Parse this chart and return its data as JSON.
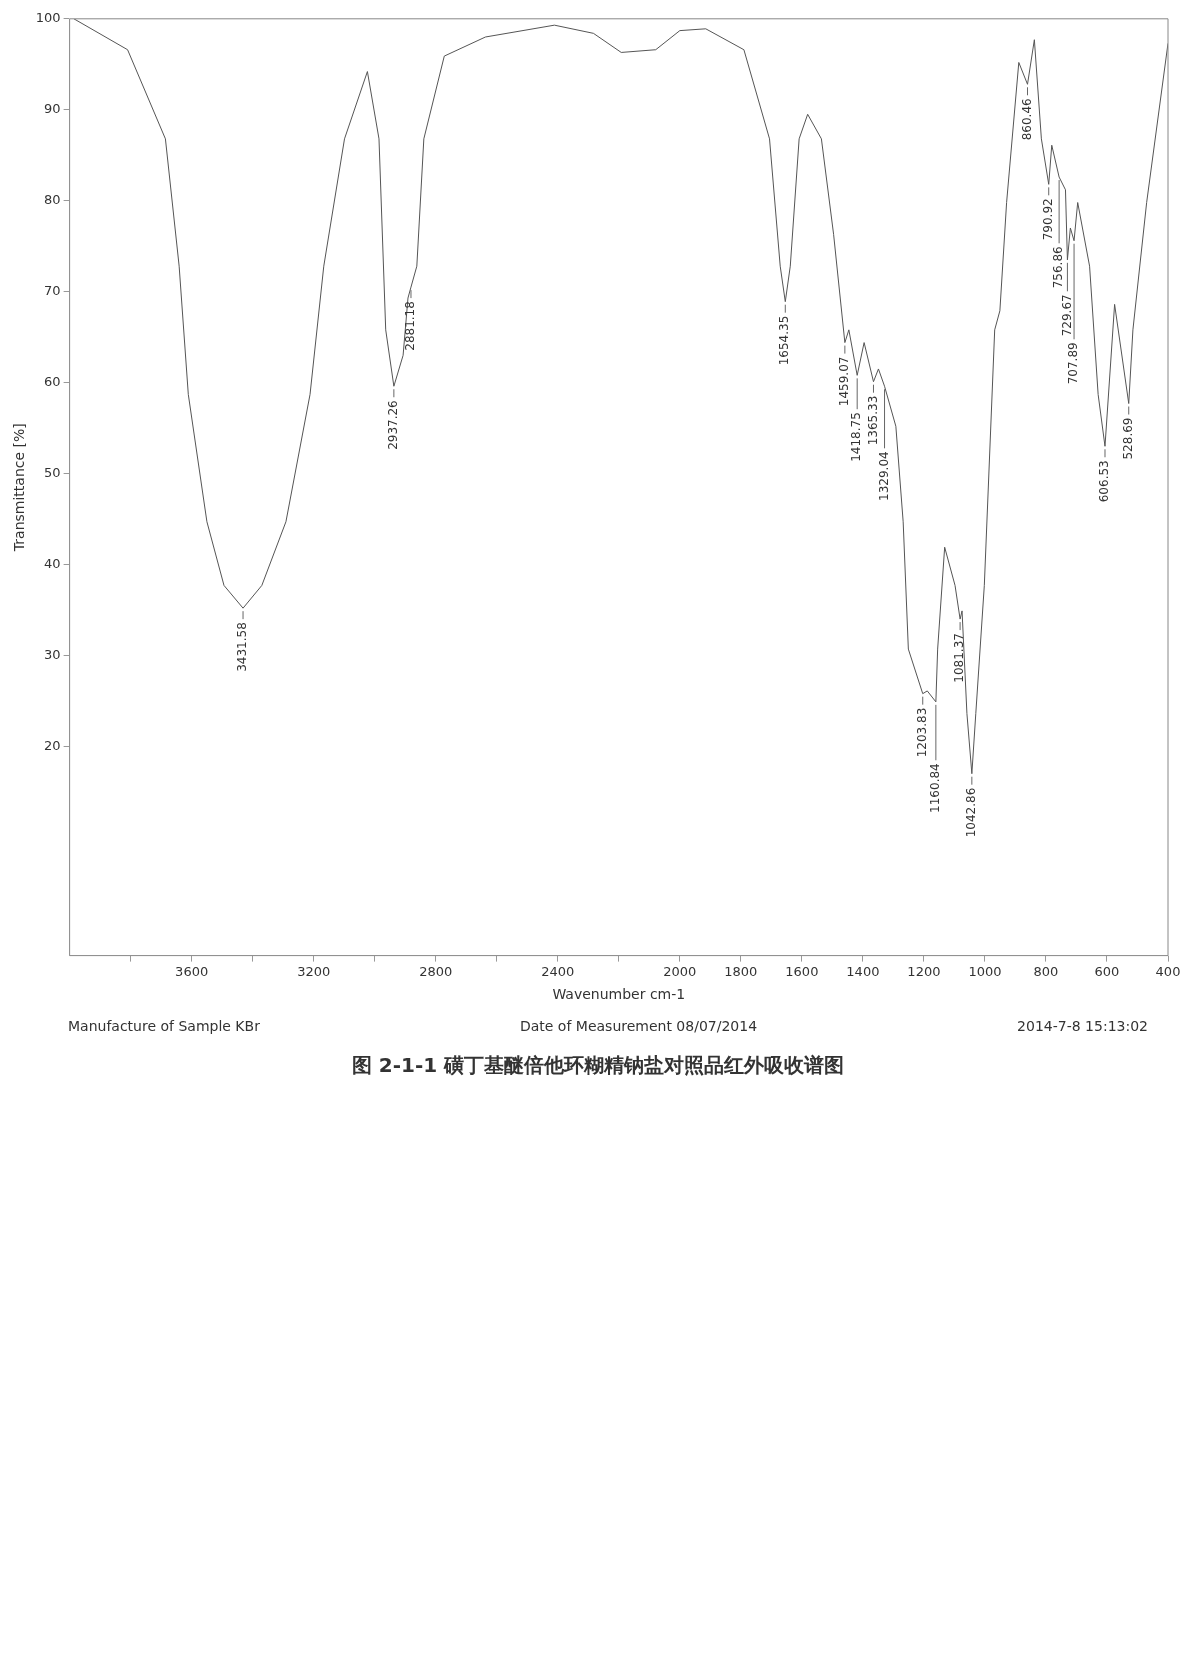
{
  "chart_data": {
    "type": "line",
    "title": "图 2-1-1   磺丁基醚倍他环糊精钠盐对照品红外吸收谱图",
    "xlabel": "Wavenumber cm-1",
    "ylabel": "Transmittance [%]",
    "x": [
      3986,
      3810,
      3686,
      3641,
      3611,
      3550,
      3494,
      3431.58,
      3370,
      3291,
      3212,
      3167,
      3099,
      3024,
      2986,
      2964,
      2937.26,
      2907,
      2891,
      2881.18,
      2862,
      2839,
      2772,
      2637,
      2411,
      2283,
      2192,
      2079,
      2000,
      1915,
      1790,
      1706,
      1671,
      1654.35,
      1638,
      1609,
      1581,
      1536,
      1496,
      1459.07,
      1446,
      1418.75,
      1396,
      1365.33,
      1349,
      1329.04,
      1292,
      1268,
      1251,
      1203.83,
      1189,
      1160.84,
      1155,
      1132,
      1098,
      1081.37,
      1075,
      1059,
      1042.86,
      1030,
      1002,
      968,
      951,
      929,
      889,
      860.46,
      838,
      815,
      790.92,
      781,
      756.86,
      736,
      729.67,
      720,
      707.89,
      696,
      657,
      629,
      606.53,
      575,
      528.69,
      515,
      470,
      400
    ],
    "values": [
      100,
      96.6,
      86.8,
      72.8,
      58.7,
      44.7,
      37.7,
      35.2,
      37.7,
      44.7,
      58.7,
      72.8,
      86.8,
      94.2,
      86.8,
      65.8,
      59.6,
      63,
      69.3,
      70.5,
      72.8,
      86.8,
      95.9,
      98,
      99.3,
      98.4,
      96.3,
      96.6,
      98.7,
      98.9,
      96.6,
      86.8,
      72.8,
      68.9,
      72.8,
      86.8,
      89.5,
      86.8,
      76.3,
      64.4,
      65.8,
      60.8,
      64.4,
      60.1,
      61.5,
      59.6,
      55.2,
      44.7,
      30.7,
      25.8,
      26.1,
      24.9,
      30.7,
      41.9,
      37.7,
      34,
      34.9,
      23.6,
      17,
      23.6,
      37.7,
      65.8,
      67.9,
      79.8,
      95.2,
      92.8,
      97.7,
      86.8,
      81.8,
      86.1,
      82.6,
      81.2,
      73.5,
      77,
      75.6,
      79.8,
      72.8,
      58.7,
      53,
      68.6,
      57.7,
      65.8,
      79.8,
      97.3
    ],
    "color": "#555555",
    "xlim": [
      4000,
      400
    ],
    "xticks": [
      {
        "value": 3800,
        "label": null
      },
      3600,
      {
        "value": 3400,
        "label": null
      },
      3200,
      {
        "value": 3000,
        "label": null
      },
      2800,
      {
        "value": 2600,
        "label": null
      },
      2400,
      {
        "value": 2200,
        "label": null
      },
      2000,
      1800,
      1600,
      1400,
      1200,
      1000,
      800,
      600,
      400
    ],
    "ylim": [
      -3,
      100
    ],
    "yticks": [
      20,
      30,
      40,
      50,
      60,
      70,
      80,
      90,
      100
    ],
    "grid": false,
    "legend": false,
    "marker": "none",
    "line_style": "solid",
    "annotations": [
      {
        "text": "3431.58",
        "x": 3431.58,
        "y": 35.2
      },
      {
        "text": "2937.26",
        "x": 2937.26,
        "y": 59.6
      },
      {
        "text": "2881.18",
        "x": 2881.18,
        "y": 70.5
      },
      {
        "text": "1654.35",
        "x": 1654.35,
        "y": 68.9
      },
      {
        "text": "1459.07",
        "x": 1459.07,
        "y": 64.4
      },
      {
        "text": "1418.75",
        "x": 1418.75,
        "y": 60.8
      },
      {
        "text": "1365.33",
        "x": 1365.33,
        "y": 60.1
      },
      {
        "text": "1329.04",
        "x": 1329.04,
        "y": 59.6
      },
      {
        "text": "1203.83",
        "x": 1203.83,
        "y": 25.8
      },
      {
        "text": "1160.84",
        "x": 1160.84,
        "y": 24.9
      },
      {
        "text": "1081.37",
        "x": 1081.37,
        "y": 34
      },
      {
        "text": "1042.86",
        "x": 1042.86,
        "y": 17
      },
      {
        "text": "860.46",
        "x": 860.46,
        "y": 92.8
      },
      {
        "text": "790.92",
        "x": 790.92,
        "y": 81.8
      },
      {
        "text": "756.86",
        "x": 756.86,
        "y": 82.6
      },
      {
        "text": "729.67",
        "x": 729.67,
        "y": 73.5
      },
      {
        "text": "707.89",
        "x": 707.89,
        "y": 75.6
      },
      {
        "text": "606.53",
        "x": 606.53,
        "y": 53
      },
      {
        "text": "528.69",
        "x": 528.69,
        "y": 57.7
      },
      "Manufacture of Sample KBr",
      "Date of Measurement 08/07/2014",
      "2014-7-8  15:13:02"
    ]
  }
}
